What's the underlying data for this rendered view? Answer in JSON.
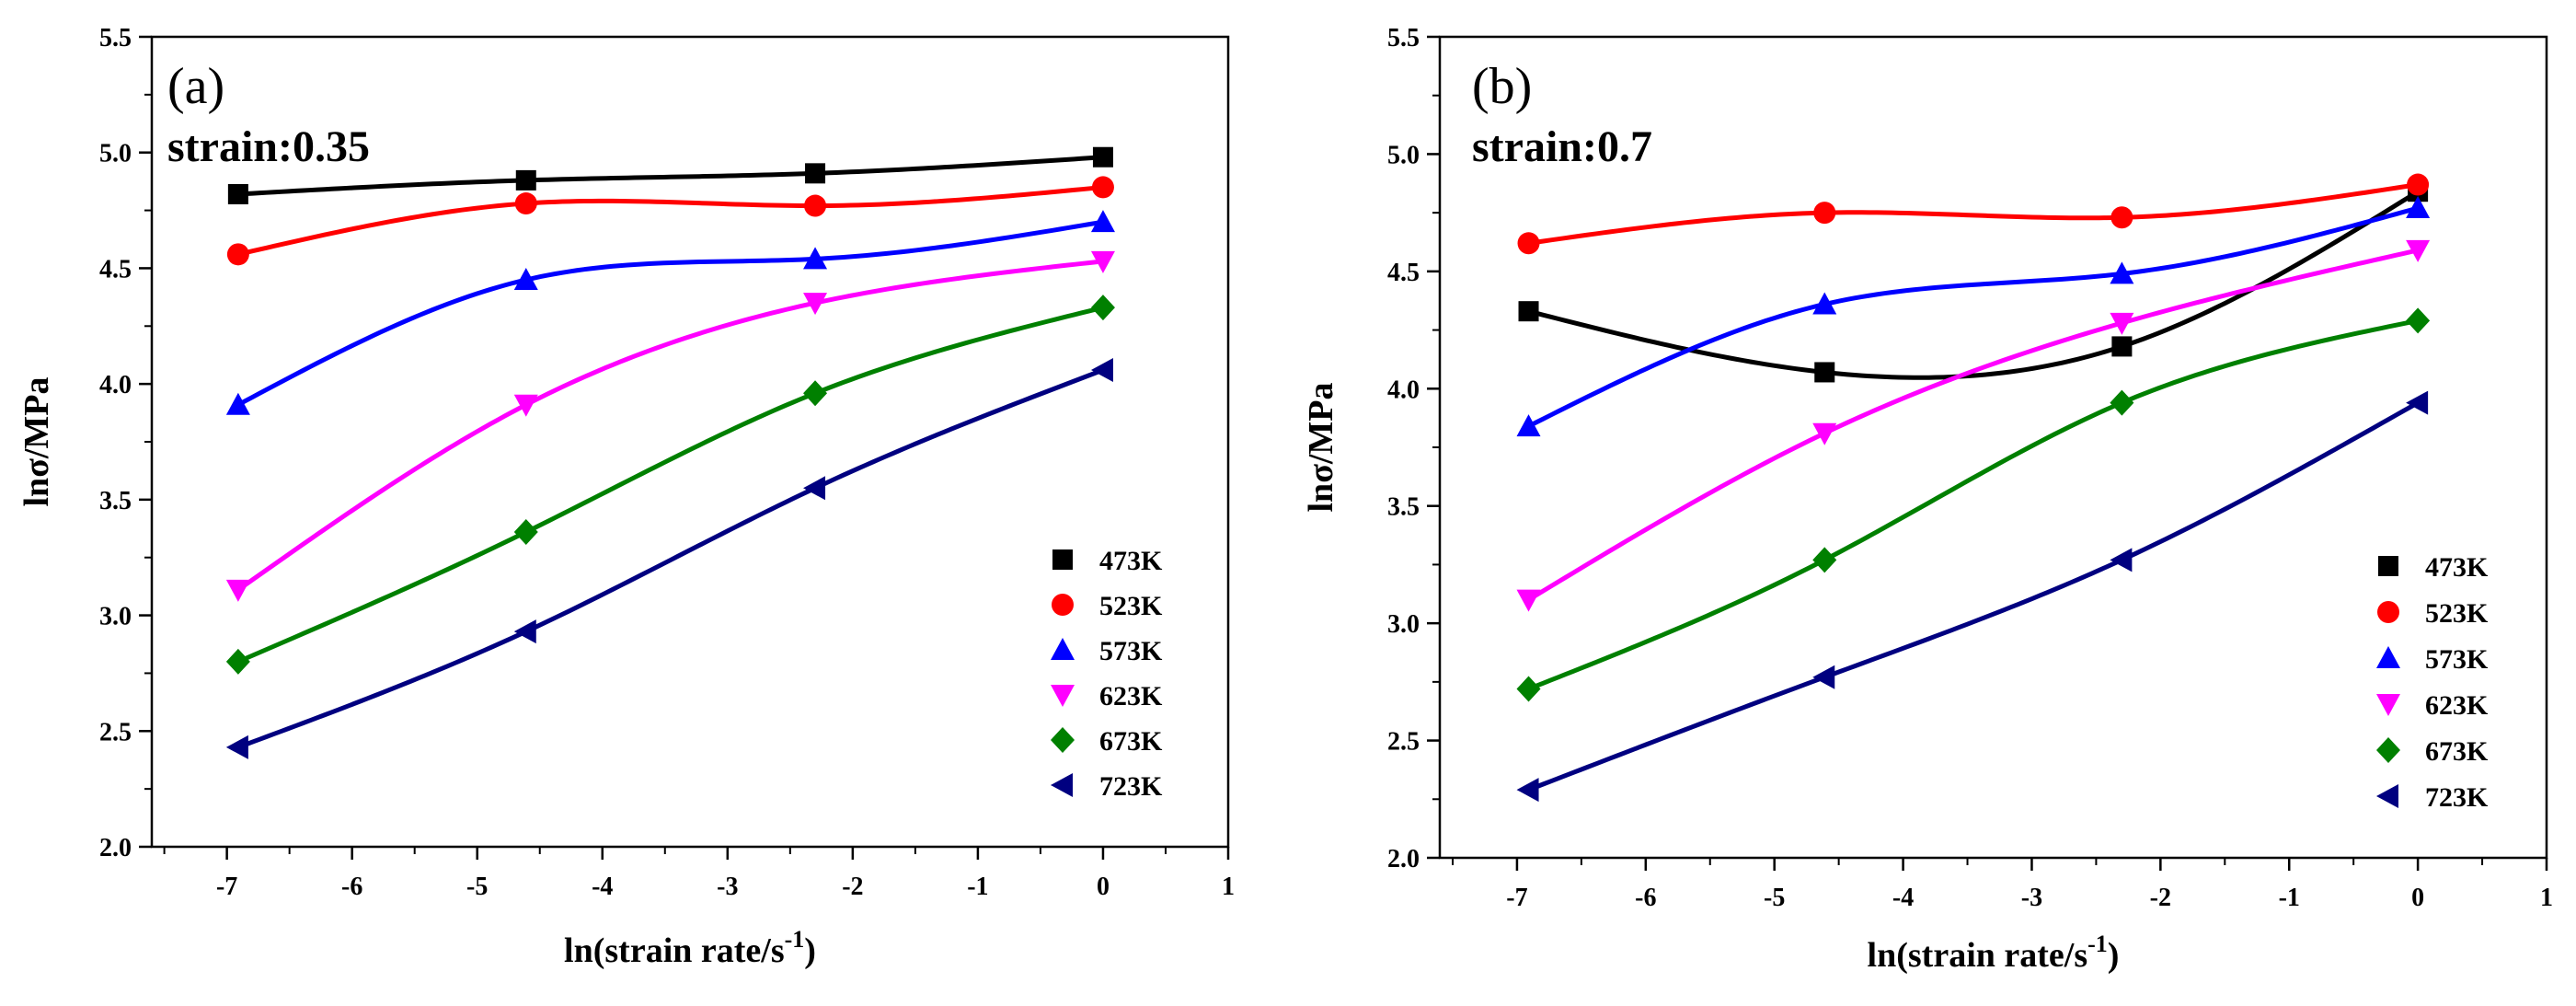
{
  "chart_data": [
    {
      "type": "line",
      "panel_label": "(a)",
      "annotation": "strain:0.35",
      "xlabel": "ln(strain rate/s",
      "xlabel_sup": "-1",
      "xlabel_tail": ")",
      "ylabel": "lnσ/MPa",
      "xlim": [
        -7.6,
        1
      ],
      "ylim": [
        2.0,
        5.5
      ],
      "xticks": [
        "-7",
        "-6",
        "-5",
        "-4",
        "-3",
        "-2",
        "-1",
        "0",
        "1"
      ],
      "xtick_values": [
        -7,
        -6,
        -5,
        -4,
        -3,
        -2,
        -1,
        0,
        1
      ],
      "yticks": [
        "2.0",
        "2.5",
        "3.0",
        "3.5",
        "4.0",
        "4.5",
        "5.0",
        "5.5"
      ],
      "ytick_values": [
        2.0,
        2.5,
        3.0,
        3.5,
        4.0,
        4.5,
        5.0,
        5.5
      ],
      "x": [
        -6.91,
        -4.61,
        -2.3,
        0
      ],
      "series": [
        {
          "name": "473K",
          "values": [
            4.82,
            4.88,
            4.91,
            4.98
          ],
          "color": "#000000",
          "marker": "square"
        },
        {
          "name": "523K",
          "values": [
            4.56,
            4.78,
            4.77,
            4.85
          ],
          "color": "#ff0000",
          "marker": "circle"
        },
        {
          "name": "573K",
          "values": [
            3.91,
            4.45,
            4.54,
            4.7
          ],
          "color": "#0000ff",
          "marker": "triangle-up"
        },
        {
          "name": "623K",
          "values": [
            3.11,
            3.91,
            4.35,
            4.53
          ],
          "color": "#ff00ff",
          "marker": "triangle-down"
        },
        {
          "name": "673K",
          "values": [
            2.8,
            3.36,
            3.96,
            4.33
          ],
          "color": "#008000",
          "marker": "diamond"
        },
        {
          "name": "723K",
          "values": [
            2.43,
            2.93,
            3.55,
            4.06
          ],
          "color": "#000080",
          "marker": "triangle-left"
        }
      ]
    },
    {
      "type": "line",
      "panel_label": "(b)",
      "annotation": "strain:0.7",
      "xlabel": "ln(strain rate/s",
      "xlabel_sup": "-1",
      "xlabel_tail": ")",
      "ylabel": "lnσ/MPa",
      "xlim": [
        -7.6,
        1
      ],
      "ylim": [
        2.0,
        5.5
      ],
      "xticks": [
        "-7",
        "-6",
        "-5",
        "-4",
        "-3",
        "-2",
        "-1",
        "0",
        "1"
      ],
      "xtick_values": [
        -7,
        -6,
        -5,
        -4,
        -3,
        -2,
        -1,
        0,
        1
      ],
      "yticks": [
        "2.0",
        "2.5",
        "3.0",
        "3.5",
        "4.0",
        "4.5",
        "5.0",
        "5.5"
      ],
      "ytick_values": [
        2.0,
        2.5,
        3.0,
        3.5,
        4.0,
        4.5,
        5.0,
        5.5
      ],
      "x": [
        -6.91,
        -4.61,
        -2.3,
        0
      ],
      "series": [
        {
          "name": "473K",
          "values": [
            4.33,
            4.07,
            4.18,
            4.84
          ],
          "color": "#000000",
          "marker": "square"
        },
        {
          "name": "523K",
          "values": [
            4.62,
            4.75,
            4.73,
            4.87
          ],
          "color": "#ff0000",
          "marker": "circle"
        },
        {
          "name": "573K",
          "values": [
            3.84,
            4.36,
            4.49,
            4.77
          ],
          "color": "#0000ff",
          "marker": "triangle-up"
        },
        {
          "name": "623K",
          "values": [
            3.1,
            3.81,
            4.28,
            4.59
          ],
          "color": "#ff00ff",
          "marker": "triangle-down"
        },
        {
          "name": "673K",
          "values": [
            2.72,
            3.27,
            3.94,
            4.29
          ],
          "color": "#008000",
          "marker": "diamond"
        },
        {
          "name": "723K",
          "values": [
            2.29,
            2.77,
            3.27,
            3.94
          ],
          "color": "#000080",
          "marker": "triangle-left"
        }
      ]
    }
  ]
}
